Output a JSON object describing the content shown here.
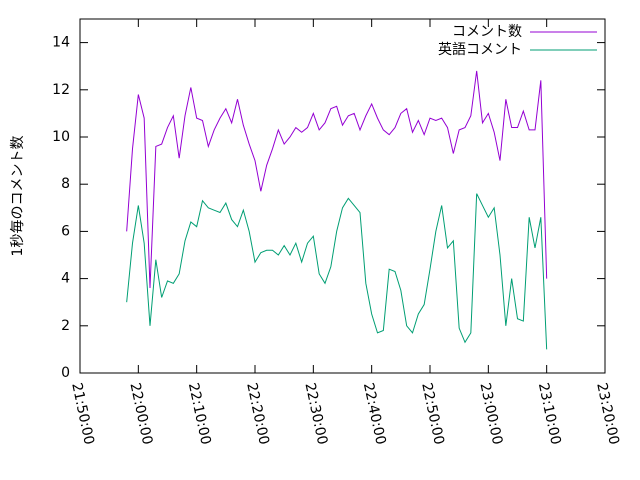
{
  "chart_data": {
    "type": "line",
    "ylabel": "1秒毎のコメント数",
    "ylim": [
      0,
      15
    ],
    "yticks": [
      0,
      2,
      4,
      6,
      8,
      10,
      12,
      14
    ],
    "xlim": [
      "21:50:00",
      "23:20:00"
    ],
    "xticks": [
      "21:50:00",
      "22:00:00",
      "22:10:00",
      "22:20:00",
      "22:30:00",
      "22:40:00",
      "22:50:00",
      "23:00:00",
      "23:10:00",
      "23:20:00"
    ],
    "legend": "top-right",
    "x": [
      "21:58:00",
      "21:59:00",
      "22:00:00",
      "22:01:00",
      "22:02:00",
      "22:03:00",
      "22:04:00",
      "22:05:00",
      "22:06:00",
      "22:07:00",
      "22:08:00",
      "22:09:00",
      "22:10:00",
      "22:11:00",
      "22:12:00",
      "22:13:00",
      "22:14:00",
      "22:15:00",
      "22:16:00",
      "22:17:00",
      "22:18:00",
      "22:19:00",
      "22:20:00",
      "22:21:00",
      "22:22:00",
      "22:23:00",
      "22:24:00",
      "22:25:00",
      "22:26:00",
      "22:27:00",
      "22:28:00",
      "22:29:00",
      "22:30:00",
      "22:31:00",
      "22:32:00",
      "22:33:00",
      "22:34:00",
      "22:35:00",
      "22:36:00",
      "22:37:00",
      "22:38:00",
      "22:39:00",
      "22:40:00",
      "22:41:00",
      "22:42:00",
      "22:43:00",
      "22:44:00",
      "22:45:00",
      "22:46:00",
      "22:47:00",
      "22:48:00",
      "22:49:00",
      "22:50:00",
      "22:51:00",
      "22:52:00",
      "22:53:00",
      "22:54:00",
      "22:55:00",
      "22:56:00",
      "22:57:00",
      "22:58:00",
      "22:59:00",
      "23:00:00",
      "23:01:00",
      "23:02:00",
      "23:03:00",
      "23:04:00",
      "23:05:00",
      "23:06:00",
      "23:07:00",
      "23:08:00",
      "23:09:00",
      "23:10:00"
    ],
    "series": [
      {
        "name": "コメント数",
        "color": "#9400d3",
        "values": [
          6.0,
          9.5,
          11.8,
          10.8,
          3.6,
          9.6,
          9.7,
          10.4,
          10.9,
          9.1,
          10.9,
          12.1,
          10.8,
          10.7,
          9.6,
          10.3,
          10.8,
          11.2,
          10.6,
          11.6,
          10.5,
          9.7,
          9.0,
          7.7,
          8.8,
          9.5,
          10.3,
          9.7,
          10.0,
          10.4,
          10.2,
          10.4,
          11.0,
          10.3,
          10.6,
          11.2,
          11.3,
          10.5,
          10.9,
          11.0,
          10.3,
          10.9,
          11.4,
          10.8,
          10.3,
          10.1,
          10.4,
          11.0,
          11.2,
          10.2,
          10.7,
          10.1,
          10.8,
          10.7,
          10.8,
          10.4,
          9.3,
          10.3,
          10.4,
          10.9,
          12.8,
          10.6,
          11.0,
          10.2,
          9.0,
          11.6,
          10.4,
          10.4,
          11.1,
          10.3,
          10.3,
          12.4,
          4.0
        ]
      },
      {
        "name": "英語コメント",
        "color": "#009e73",
        "values": [
          3.0,
          5.5,
          7.1,
          5.5,
          2.0,
          4.8,
          3.2,
          3.9,
          3.8,
          4.2,
          5.6,
          6.4,
          6.2,
          7.3,
          7.0,
          6.9,
          6.8,
          7.2,
          6.5,
          6.2,
          6.9,
          6.0,
          4.7,
          5.1,
          5.2,
          5.2,
          5.0,
          5.4,
          5.0,
          5.5,
          4.7,
          5.5,
          5.8,
          4.2,
          3.8,
          4.5,
          6.0,
          7.0,
          7.4,
          7.1,
          6.8,
          3.8,
          2.5,
          1.7,
          1.8,
          4.4,
          4.3,
          3.5,
          2.0,
          1.7,
          2.5,
          2.9,
          4.4,
          6.0,
          7.1,
          5.3,
          5.6,
          1.9,
          1.3,
          1.7,
          7.6,
          7.1,
          6.6,
          7.0,
          5.0,
          2.0,
          4.0,
          2.3,
          2.2,
          6.6,
          5.3,
          6.6,
          1.0
        ]
      }
    ]
  }
}
